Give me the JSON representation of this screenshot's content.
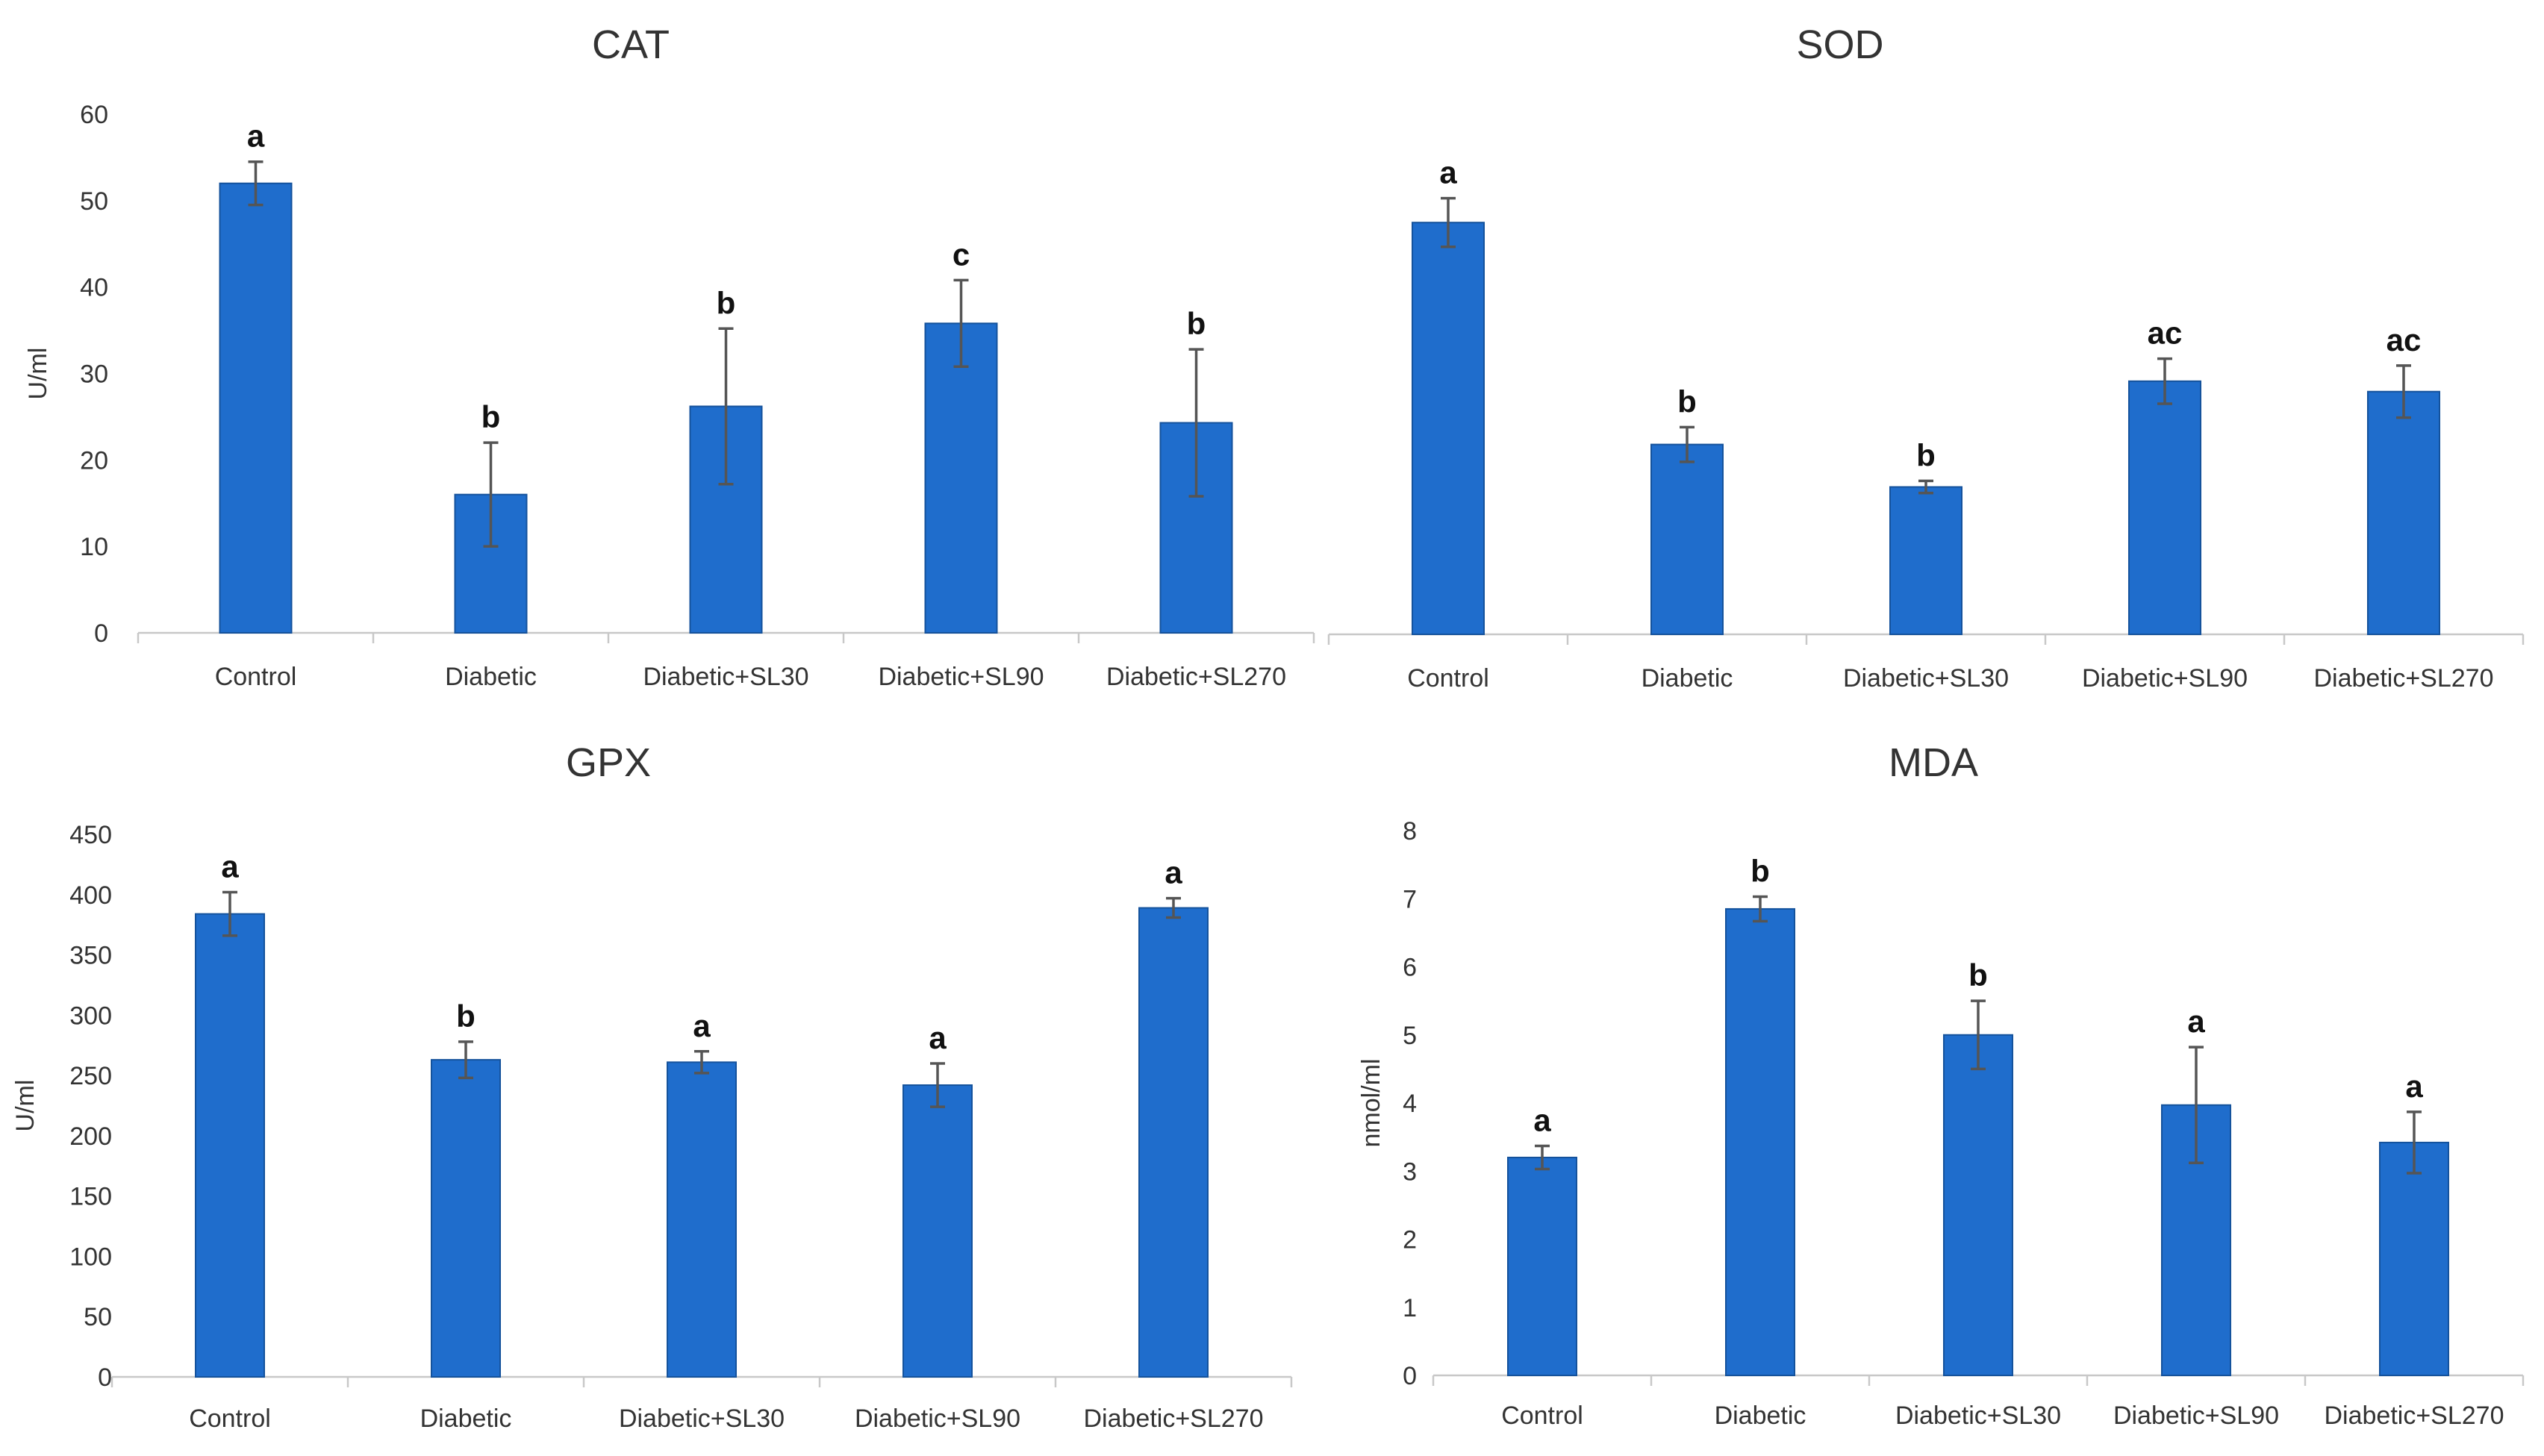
{
  "colors": {
    "bar": "#1f6dcc",
    "bar_edge": "#14529c",
    "error_bar": "#555555",
    "axis": "#c8c8c8",
    "text": "#333333"
  },
  "chart_data": [
    {
      "type": "bar",
      "title": "CAT",
      "ylabel": "U/ml",
      "xlabel": "",
      "ylim": [
        0,
        60
      ],
      "yticks": [
        "0",
        "10",
        "20",
        "30",
        "40",
        "50",
        "60"
      ],
      "grid": false,
      "categories": [
        "Control",
        "Diabetic",
        "Diabetic+SL30",
        "Diabetic+SL90",
        "Diabetic+SL270"
      ],
      "values": [
        52,
        16,
        26.2,
        35.8,
        24.3
      ],
      "errors": [
        2.5,
        6,
        9,
        5,
        8.5
      ],
      "significance": [
        "a",
        "b",
        "b",
        "c",
        "b"
      ]
    },
    {
      "type": "bar",
      "title": "SOD",
      "ylabel": "",
      "xlabel": "",
      "ylim": [
        0,
        60
      ],
      "yticks": [],
      "grid": false,
      "categories": [
        "Control",
        "Diabetic",
        "Diabetic+SL30",
        "Diabetic+SL90",
        "Diabetic+SL270"
      ],
      "values": [
        47.5,
        21.9,
        17,
        29.2,
        28
      ],
      "errors": [
        2.8,
        2,
        0.7,
        2.6,
        3
      ],
      "significance": [
        "a",
        "b",
        "b",
        "ac",
        "ac"
      ]
    },
    {
      "type": "bar",
      "title": "GPX",
      "ylabel": "U/ml",
      "xlabel": "",
      "ylim": [
        0,
        450
      ],
      "yticks": [
        "0",
        "50",
        "100",
        "150",
        "200",
        "250",
        "300",
        "350",
        "400",
        "450"
      ],
      "grid": false,
      "categories": [
        "Control",
        "Diabetic",
        "Diabetic+SL30",
        "Diabetic+SL90",
        "Diabetic+SL270"
      ],
      "values": [
        384,
        263,
        261,
        242,
        389
      ],
      "errors": [
        18,
        15,
        9,
        18,
        8
      ],
      "significance": [
        "a",
        "b",
        "a",
        "a",
        "a"
      ]
    },
    {
      "type": "bar",
      "title": "MDA",
      "ylabel": "nmol/ml",
      "xlabel": "",
      "ylim": [
        0,
        8
      ],
      "yticks": [
        "0",
        "1",
        "2",
        "3",
        "4",
        "5",
        "6",
        "7",
        "8"
      ],
      "grid": false,
      "categories": [
        "Control",
        "Diabetic",
        "Diabetic+SL30",
        "Diabetic+SL90",
        "Diabetic+SL270"
      ],
      "values": [
        3.2,
        6.85,
        5,
        3.97,
        3.42
      ],
      "errors": [
        0.17,
        0.18,
        0.5,
        0.85,
        0.45
      ],
      "significance": [
        "a",
        "b",
        "b",
        "a",
        "a"
      ]
    }
  ]
}
